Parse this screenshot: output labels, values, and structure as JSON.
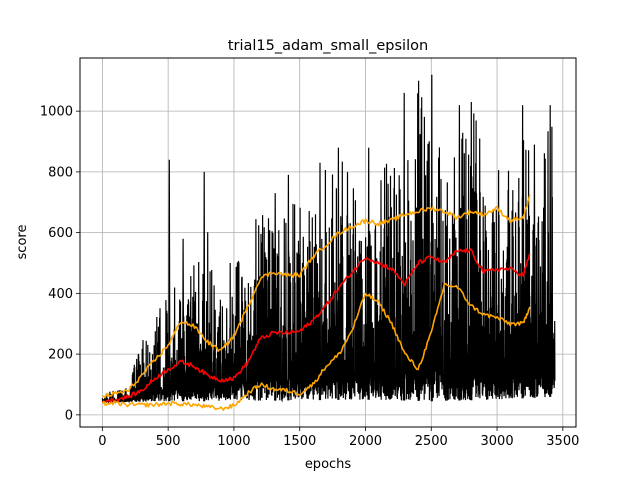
{
  "chart_data": {
    "type": "line",
    "title": "trial15_adam_small_epsilon",
    "xlabel": "epochs",
    "ylabel": "score",
    "xlim": [
      -170,
      3600
    ],
    "ylim": [
      -40,
      1175
    ],
    "xticks": [
      0,
      500,
      1000,
      1500,
      2000,
      2500,
      3000,
      3500
    ],
    "yticks": [
      0,
      200,
      400,
      600,
      800,
      1000
    ],
    "grid": true,
    "legend": "none",
    "series": [
      {
        "role": "raw",
        "color": "#000000",
        "x_range": [
          0,
          3440
        ],
        "baseline": [
          [
            0,
            40
          ],
          [
            500,
            45
          ],
          [
            1000,
            45
          ],
          [
            1500,
            48
          ],
          [
            2000,
            50
          ],
          [
            2500,
            45
          ],
          [
            3000,
            50
          ],
          [
            3440,
            60
          ]
        ],
        "peak": [
          [
            0,
            70
          ],
          [
            200,
            110
          ],
          [
            300,
            250
          ],
          [
            400,
            300
          ],
          [
            500,
            480
          ],
          [
            600,
            390
          ],
          [
            700,
            520
          ],
          [
            800,
            620
          ],
          [
            900,
            500
          ],
          [
            1000,
            560
          ],
          [
            1100,
            570
          ],
          [
            1200,
            720
          ],
          [
            1300,
            700
          ],
          [
            1400,
            740
          ],
          [
            1500,
            700
          ],
          [
            1600,
            720
          ],
          [
            1700,
            830
          ],
          [
            1800,
            880
          ],
          [
            1900,
            780
          ],
          [
            2000,
            780
          ],
          [
            2100,
            830
          ],
          [
            2200,
            900
          ],
          [
            2300,
            1050
          ],
          [
            2400,
            1100
          ],
          [
            2500,
            1120
          ],
          [
            2600,
            880
          ],
          [
            2700,
            920
          ],
          [
            2800,
            1030
          ],
          [
            2900,
            960
          ],
          [
            3000,
            880
          ],
          [
            3100,
            860
          ],
          [
            3200,
            1020
          ],
          [
            3300,
            760
          ],
          [
            3400,
            1020
          ],
          [
            3440,
            880
          ]
        ],
        "spikes": [
          [
            505,
            840
          ],
          [
            610,
            580
          ],
          [
            770,
            800
          ],
          [
            1310,
            730
          ],
          [
            1410,
            790
          ],
          [
            1650,
            830
          ],
          [
            1790,
            880
          ],
          [
            2020,
            880
          ],
          [
            2290,
            1060
          ],
          [
            2400,
            1100
          ],
          [
            2500,
            1120
          ],
          [
            2710,
            1020
          ],
          [
            2800,
            1030
          ],
          [
            3190,
            1020
          ],
          [
            3280,
            890
          ],
          [
            3400,
            1020
          ]
        ]
      },
      {
        "role": "moving-average",
        "color": "#ff0000",
        "x": [
          0,
          100,
          200,
          300,
          400,
          500,
          600,
          700,
          800,
          900,
          1000,
          1100,
          1200,
          1300,
          1400,
          1500,
          1600,
          1700,
          1800,
          1900,
          2000,
          2100,
          2200,
          2300,
          2400,
          2500,
          2600,
          2700,
          2800,
          2900,
          3000,
          3100,
          3200,
          3250
        ],
        "y": [
          45,
          50,
          60,
          80,
          120,
          150,
          175,
          160,
          130,
          115,
          120,
          170,
          250,
          270,
          270,
          275,
          310,
          360,
          420,
          470,
          520,
          500,
          480,
          430,
          500,
          520,
          500,
          540,
          540,
          470,
          480,
          480,
          460,
          530
        ]
      },
      {
        "role": "upper-band",
        "color": "#ffa500",
        "x": [
          0,
          100,
          200,
          300,
          400,
          500,
          600,
          700,
          800,
          900,
          1000,
          1100,
          1200,
          1300,
          1400,
          1500,
          1600,
          1700,
          1800,
          1900,
          2000,
          2100,
          2200,
          2300,
          2400,
          2500,
          2600,
          2700,
          2800,
          2900,
          3000,
          3100,
          3200,
          3250
        ],
        "y": [
          60,
          70,
          80,
          130,
          180,
          230,
          310,
          290,
          240,
          210,
          260,
          350,
          450,
          470,
          460,
          460,
          520,
          560,
          600,
          620,
          640,
          630,
          640,
          660,
          670,
          680,
          670,
          650,
          670,
          660,
          680,
          640,
          650,
          720
        ]
      },
      {
        "role": "lower-band",
        "color": "#ffa500",
        "x": [
          0,
          100,
          200,
          300,
          400,
          500,
          600,
          700,
          800,
          900,
          1000,
          1100,
          1200,
          1300,
          1400,
          1500,
          1600,
          1700,
          1800,
          1900,
          2000,
          2100,
          2200,
          2300,
          2400,
          2500,
          2600,
          2700,
          2800,
          2900,
          3000,
          3100,
          3200,
          3250
        ],
        "y": [
          38,
          38,
          33,
          33,
          33,
          38,
          36,
          33,
          26,
          20,
          30,
          70,
          100,
          85,
          80,
          70,
          100,
          160,
          200,
          280,
          400,
          370,
          300,
          200,
          150,
          270,
          430,
          420,
          360,
          330,
          320,
          300,
          300,
          360
        ]
      }
    ]
  }
}
